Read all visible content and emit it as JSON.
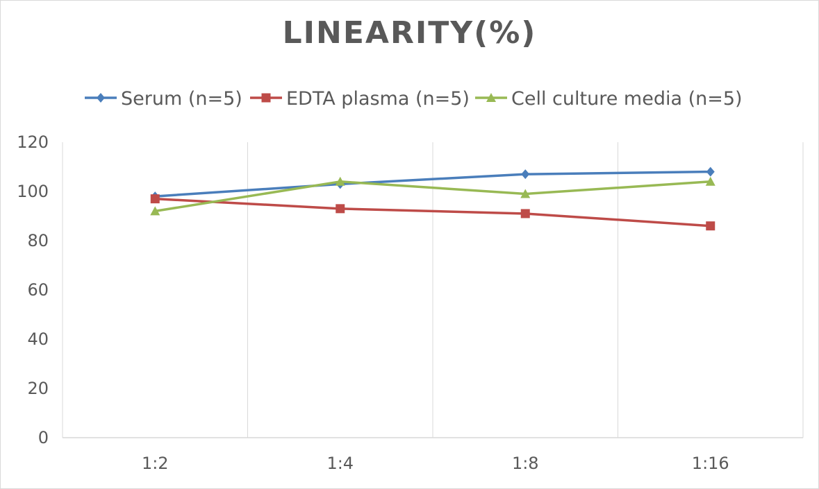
{
  "chart_data": {
    "type": "line",
    "title": "LINEARITY(%)",
    "xlabel": "",
    "ylabel": "",
    "categories": [
      "1:2",
      "1:4",
      "1:8",
      "1:16"
    ],
    "ylim": [
      0,
      120
    ],
    "yticks": [
      0,
      20,
      40,
      60,
      80,
      100,
      120
    ],
    "grid": "vertical",
    "legend": "top",
    "series": [
      {
        "name": "Serum (n=5)",
        "values": [
          98,
          103,
          107,
          108
        ],
        "color": "#4a7ebb",
        "marker": "diamond"
      },
      {
        "name": "EDTA plasma (n=5)",
        "values": [
          97,
          93,
          91,
          86
        ],
        "color": "#be4b48",
        "marker": "square"
      },
      {
        "name": "Cell culture media (n=5)",
        "values": [
          92,
          104,
          99,
          104
        ],
        "color": "#98b954",
        "marker": "triangle"
      }
    ]
  }
}
